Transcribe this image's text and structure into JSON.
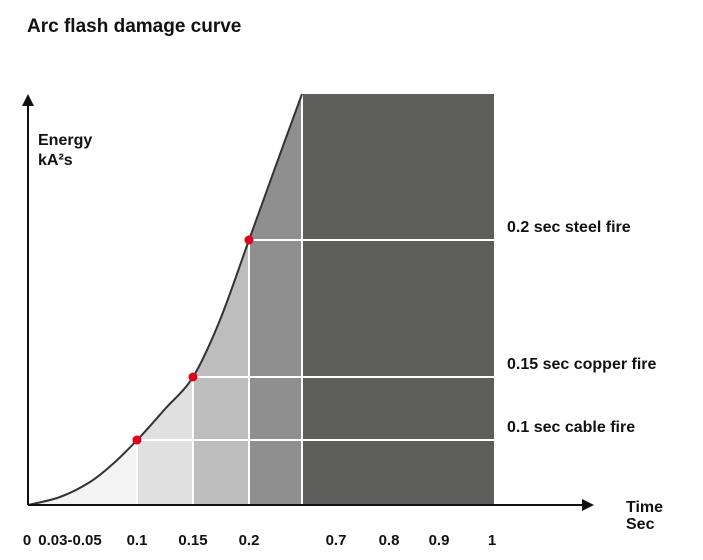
{
  "chart_data": {
    "type": "area",
    "title": "Arc flash damage curve",
    "ylabel_line1": "Energy",
    "ylabel_line2": "kA²s",
    "xlabel_line1": "Time",
    "xlabel_line2": "Sec",
    "x_tick_labels": [
      {
        "label": "0",
        "value": 0
      },
      {
        "label": "0.03-0.05",
        "value": 0.04
      },
      {
        "label": "0.1",
        "value": 0.1
      },
      {
        "label": "0.15",
        "value": 0.15
      },
      {
        "label": "0.2",
        "value": 0.2
      },
      {
        "label": "0.7",
        "value": 0.7
      },
      {
        "label": "0.8",
        "value": 0.8
      },
      {
        "label": "0.9",
        "value": 0.9
      },
      {
        "label": "1",
        "value": 1
      }
    ],
    "damage_points": [
      {
        "time": 0.1,
        "label": "0.1 sec cable fire"
      },
      {
        "time": 0.15,
        "label": "0.15 sec copper fire"
      },
      {
        "time": 0.2,
        "label": "0.2 sec steel fire"
      }
    ],
    "grid": true,
    "colors": {
      "axis": "#111111",
      "curve": "#333333",
      "point": "#e0001b",
      "zone1": "#f3f3f3",
      "zone2": "#e0e0e0",
      "zone3": "#bdbdbd",
      "zone4": "#8f8f8f",
      "dark_zone": "#5e5e5d",
      "grid": "#ffffff"
    }
  }
}
